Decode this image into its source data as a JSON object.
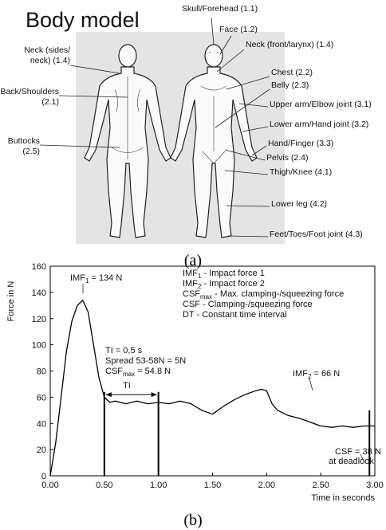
{
  "figure_a": {
    "title": "Body model",
    "labels": [
      [
        "Skull/Forehead (1.1)"
      ],
      [
        "Face (1.2)"
      ],
      [
        "Neck (front/larynx) (1.4)"
      ],
      [
        "Neck (sides/",
        "neck)  (1.4)"
      ],
      [
        "Chest (2.2)"
      ],
      [
        "Belly (2.3)"
      ],
      [
        "Back/Shoulders",
        "(2.1)"
      ],
      [
        "Upper arm/Elbow joint (3.1)"
      ],
      [
        "Lower arm/Hand joint (3.2)"
      ],
      [
        "Buttocks",
        "(2.5)"
      ],
      [
        "Hand/Finger (3.3)"
      ],
      [
        "Pelvis (2.4)"
      ],
      [
        "Thigh/Knee (4.1)"
      ],
      [
        "Lower leg (4.2)"
      ],
      [
        "Feet/Toes/Foot joint (4.3)"
      ]
    ],
    "caption": "(a)"
  },
  "chart_data": {
    "type": "line",
    "x": [
      0,
      0.05,
      0.1,
      0.15,
      0.2,
      0.25,
      0.3,
      0.35,
      0.4,
      0.45,
      0.5,
      0.55,
      0.6,
      0.7,
      0.8,
      0.9,
      1.0,
      1.1,
      1.2,
      1.3,
      1.4,
      1.5,
      1.6,
      1.7,
      1.8,
      1.9,
      1.95,
      2.0,
      2.05,
      2.1,
      2.2,
      2.3,
      2.4,
      2.5,
      2.6,
      2.7,
      2.8,
      2.9,
      3.0
    ],
    "series": [
      {
        "color": "#000000",
        "values": [
          0,
          25,
          60,
          95,
          118,
          130,
          134,
          125,
          100,
          75,
          60,
          56,
          57,
          55,
          57,
          55,
          56,
          55,
          57,
          55,
          50,
          47,
          53,
          58,
          62,
          65,
          66,
          65,
          55,
          50,
          46,
          44,
          41,
          38,
          37,
          38,
          37,
          38,
          38
        ]
      }
    ],
    "xlim": [
      0,
      3
    ],
    "ylim": [
      0,
      160
    ],
    "xticks": [
      {
        "value": 0,
        "label": "0.00"
      },
      {
        "value": 0.5,
        "label": "0.50"
      },
      {
        "value": 1,
        "label": "1.00"
      },
      {
        "value": 1.5,
        "label": "1.50"
      },
      {
        "value": 2,
        "label": "2.00"
      },
      {
        "value": 2.5,
        "label": "2.50"
      },
      {
        "value": 3,
        "label": "3.00"
      }
    ],
    "yticks": [
      0,
      20,
      40,
      60,
      80,
      100,
      120,
      140,
      160
    ],
    "grid": false,
    "markers": [
      0.5,
      1.0,
      2.95
    ],
    "xlabel": "Time in seconds",
    "ylabel": "Force in N",
    "annotations": [
      {
        "text": "IMF",
        "sub": "1",
        "rest": " = 134 N"
      },
      {
        "text": "IMF",
        "sub": "1",
        "rest": " - Impact force 1"
      },
      {
        "text": "IMF",
        "sub": "2",
        "rest": " - Impact force 2"
      },
      {
        "text": "CSF",
        "sub": "max",
        "rest": " - Max. clamping-/squeezing force"
      },
      {
        "text": "CSF - Clamping-/squeezing force"
      },
      {
        "text": "DT - Constant time interval"
      },
      {
        "text": "TI = 0,5 s"
      },
      {
        "text": "Spread 53-58N = 5N"
      },
      {
        "text": "CSF",
        "sub": "max",
        "rest": " = 54.8 N"
      },
      {
        "text": "TI"
      },
      {
        "text": "IMF",
        "sub": "2",
        "rest": " = 66 N"
      },
      {
        "text": "CSF = 38 N"
      },
      {
        "text": "at deadlook"
      }
    ],
    "caption": "(b)"
  }
}
